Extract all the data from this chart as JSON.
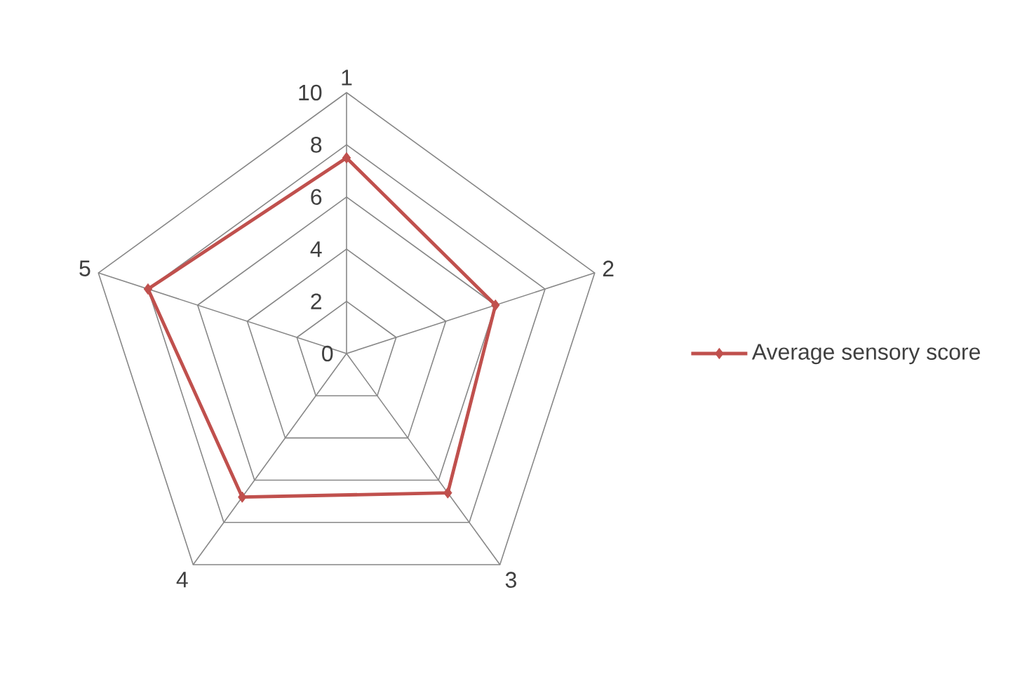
{
  "chart_data": {
    "type": "radar",
    "categories": [
      "1",
      "2",
      "3",
      "4",
      "5"
    ],
    "series": [
      {
        "name": "Average sensory score",
        "color": "#c0504d",
        "values": [
          7.5,
          6,
          6.6,
          6.8,
          8
        ]
      }
    ],
    "ylim": [
      0,
      10
    ],
    "yticks": [
      0,
      2,
      4,
      6,
      8,
      10
    ],
    "grid": true,
    "legend": "right",
    "marker": "diamond",
    "line_style": "solid"
  }
}
